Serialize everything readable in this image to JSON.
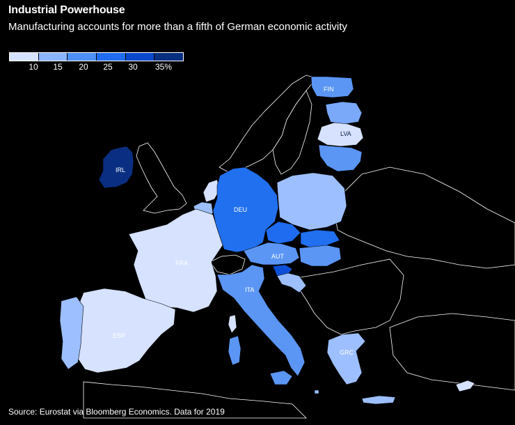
{
  "header": {
    "title": "Industrial Powerhouse",
    "subtitle": "Manufacturing accounts for more than a fifth of German economic activity"
  },
  "legend": {
    "labels": [
      "10",
      "15",
      "20",
      "25",
      "30",
      "35%"
    ],
    "colors": [
      "#d6e2ff",
      "#8ab4ff",
      "#4d8ff5",
      "#1f6cf0",
      "#0a48cc",
      "#072f80"
    ]
  },
  "countries": {
    "fin": "FIN",
    "lva": "LVA",
    "irl": "IRL",
    "deu": "DEU",
    "fra": "FRA",
    "aut": "AUT",
    "ita": "ITA",
    "esp": "ESP",
    "grc": "GRC"
  },
  "colors": {
    "very_light": "#d6e2ff",
    "light": "#9dbfff",
    "mid": "#5b96f5",
    "strong": "#2170ef",
    "darker": "#0d50d8",
    "darkest": "#0a2f82"
  },
  "footer": {
    "source": "Source: Eurostat via Bloomberg Economics. Data for 2019"
  }
}
